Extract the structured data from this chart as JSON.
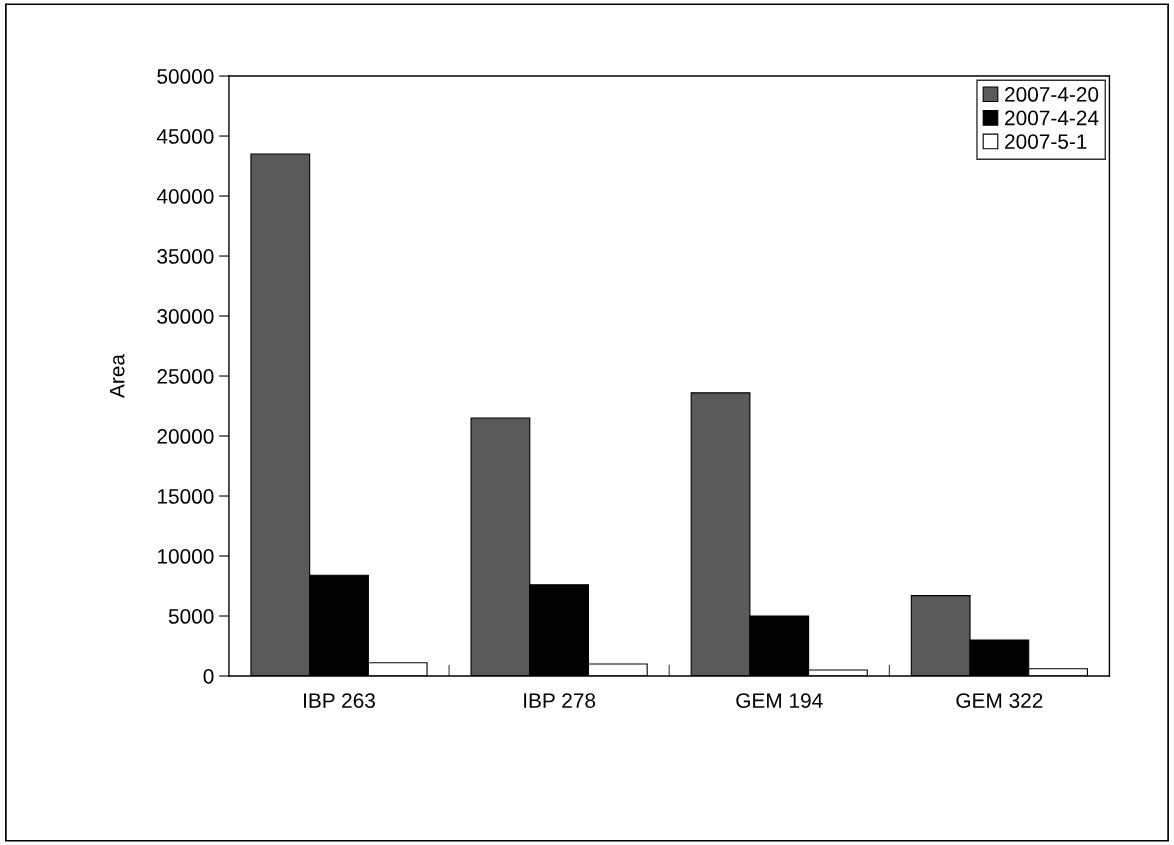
{
  "chart_data": {
    "type": "bar",
    "ylabel": "Area",
    "categories": [
      "IBP 263",
      "IBP 278",
      "GEM 194",
      "GEM 322"
    ],
    "series": [
      {
        "name": "2007-4-20",
        "color": "#5a5a5a",
        "values": [
          43500,
          21500,
          23600,
          6700
        ]
      },
      {
        "name": "2007-4-24",
        "color": "#000000",
        "values": [
          8400,
          7600,
          5000,
          3000
        ]
      },
      {
        "name": "2007-5-1",
        "color": "#ffffff",
        "values": [
          1100,
          1000,
          500,
          600
        ]
      }
    ],
    "ylim": [
      0,
      50000
    ],
    "yticks": [
      0,
      5000,
      10000,
      15000,
      20000,
      25000,
      30000,
      35000,
      40000,
      45000,
      50000
    ],
    "grid": false,
    "legend": "top right"
  }
}
